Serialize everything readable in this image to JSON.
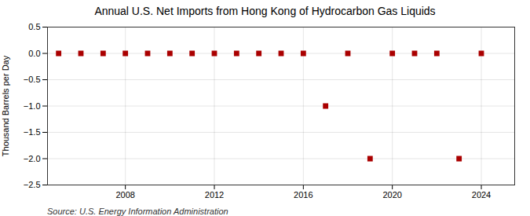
{
  "chart_data": {
    "type": "scatter",
    "title": "Annual U.S. Net Imports from Hong Kong of Hydrocarbon Gas Liquids",
    "ylabel": "Thousand Barrels per Day",
    "source": "Source: U.S. Energy Information Administration",
    "x": [
      2005,
      2006,
      2007,
      2008,
      2009,
      2010,
      2011,
      2012,
      2013,
      2014,
      2015,
      2016,
      2017,
      2018,
      2019,
      2020,
      2021,
      2022,
      2023,
      2024
    ],
    "values": [
      0.0,
      0.0,
      0.0,
      0.0,
      0.0,
      0.0,
      0.0,
      0.0,
      0.0,
      0.0,
      0.0,
      0.0,
      -1.0,
      0.0,
      -2.0,
      0.0,
      0.0,
      0.0,
      -2.0,
      0.0
    ],
    "color": "#aa0000",
    "marker": "square",
    "xlim": [
      2004.5,
      2025.5
    ],
    "ylim": [
      -2.5,
      0.5
    ],
    "xticks": [
      2008,
      2012,
      2016,
      2020,
      2024
    ],
    "yticks": [
      0.5,
      {
        "value": 0,
        "label": "0.0"
      },
      -0.5,
      {
        "value": -1,
        "label": "−1.0"
      },
      -1.5,
      {
        "value": -2,
        "label": "−2.0"
      },
      -2.5
    ],
    "grid": true
  }
}
